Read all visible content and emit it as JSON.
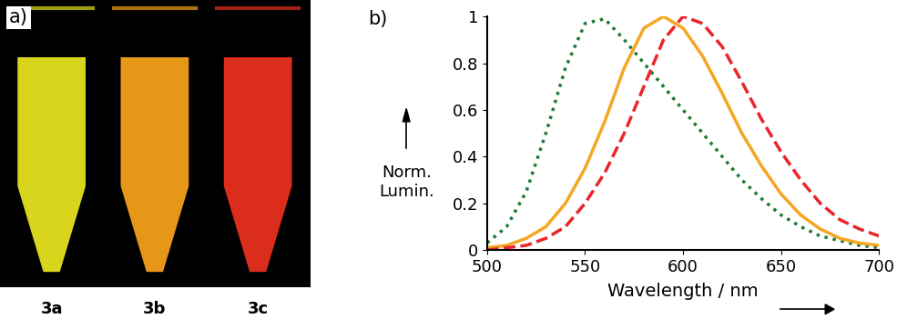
{
  "photo": {
    "panel_label": "a)",
    "samples": [
      {
        "name": "3a",
        "color": "#e6e21e"
      },
      {
        "name": "3b",
        "color": "#f5a01a"
      },
      {
        "name": "3c",
        "color": "#e8301e"
      }
    ]
  },
  "chart_data": {
    "type": "line",
    "panel_label": "b)",
    "x_label": "Wavelength / nm",
    "y_label": "Norm.\nLumin.",
    "x": [
      500,
      510,
      520,
      530,
      540,
      550,
      560,
      570,
      580,
      590,
      600,
      610,
      620,
      630,
      640,
      650,
      660,
      670,
      680,
      690,
      700
    ],
    "series": [
      {
        "color": "#1e7b34",
        "line_style": "dotted",
        "values": [
          0.03,
          0.1,
          0.25,
          0.5,
          0.78,
          0.97,
          0.99,
          0.9,
          0.8,
          0.7,
          0.6,
          0.5,
          0.4,
          0.3,
          0.22,
          0.15,
          0.1,
          0.06,
          0.04,
          0.02,
          0.01
        ]
      },
      {
        "color": "#f5a623",
        "line_style": "solid",
        "values": [
          0.01,
          0.02,
          0.05,
          0.1,
          0.2,
          0.35,
          0.55,
          0.78,
          0.95,
          1.0,
          0.95,
          0.83,
          0.67,
          0.5,
          0.36,
          0.24,
          0.15,
          0.09,
          0.05,
          0.03,
          0.02
        ]
      },
      {
        "color": "#e8262b",
        "line_style": "dashed",
        "values": [
          0.0,
          0.01,
          0.02,
          0.05,
          0.1,
          0.2,
          0.33,
          0.5,
          0.7,
          0.9,
          1.0,
          0.97,
          0.87,
          0.72,
          0.56,
          0.42,
          0.3,
          0.2,
          0.13,
          0.09,
          0.06
        ]
      }
    ],
    "xlim": [
      500,
      700
    ],
    "xticks": [
      500,
      550,
      600,
      650,
      700
    ],
    "ylim": [
      0,
      1
    ],
    "yticks": [
      0,
      0.2,
      0.4,
      0.6,
      0.8,
      1
    ],
    "grid": false
  }
}
